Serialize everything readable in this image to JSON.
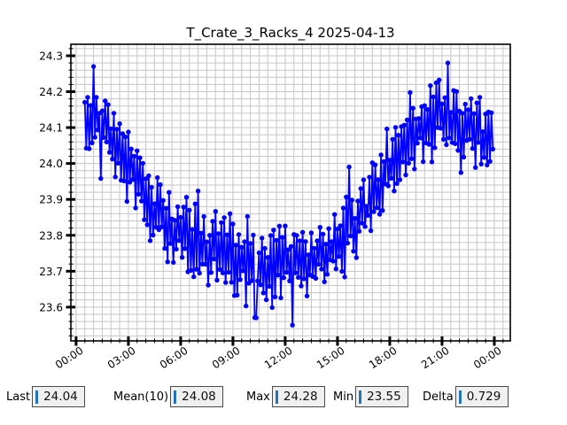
{
  "chart_data": {
    "type": "line",
    "title": "T_Crate_3_Racks_4 2025-04-13",
    "xlabel": "",
    "ylabel": "",
    "legend": null,
    "grid": true,
    "line_color": "#0000ff",
    "marker": "circle",
    "x_ticks": {
      "labels": [
        "00:00",
        "03:00",
        "06:00",
        "09:00",
        "12:00",
        "15:00",
        "18:00",
        "21:00",
        "00:00"
      ],
      "minutes": [
        0,
        180,
        360,
        540,
        720,
        900,
        1080,
        1260,
        1440
      ],
      "minor_step_minutes": 30
    },
    "y_ticks": {
      "values": [
        23.6,
        23.7,
        23.8,
        23.9,
        24.0,
        24.1,
        24.2,
        24.3
      ],
      "labels": [
        "23.6",
        "23.7",
        "23.8",
        "23.9",
        "24.0",
        "24.1",
        "24.2",
        "24.3"
      ],
      "minor_step": 0.02
    },
    "xlim_minutes": [
      -18,
      1495
    ],
    "ylim": [
      23.506,
      24.332
    ],
    "series": {
      "name": "T_Crate_3_Racks_4",
      "t_start_minutes": 30,
      "t_end_minutes": 1435,
      "t_step_minutes": 5,
      "seed": 1337,
      "trend_keypoints": [
        [
          30,
          24.12
        ],
        [
          90,
          24.12
        ],
        [
          150,
          24.03
        ],
        [
          210,
          23.95
        ],
        [
          270,
          23.87
        ],
        [
          330,
          23.82
        ],
        [
          390,
          23.79
        ],
        [
          450,
          23.76
        ],
        [
          510,
          23.74
        ],
        [
          570,
          23.72
        ],
        [
          660,
          23.72
        ],
        [
          720,
          23.72
        ],
        [
          780,
          23.71
        ],
        [
          840,
          23.74
        ],
        [
          900,
          23.78
        ],
        [
          960,
          23.83
        ],
        [
          1020,
          23.9
        ],
        [
          1080,
          23.98
        ],
        [
          1140,
          24.06
        ],
        [
          1200,
          24.1
        ],
        [
          1260,
          24.12
        ],
        [
          1320,
          24.12
        ],
        [
          1380,
          24.1
        ],
        [
          1435,
          24.06
        ]
      ],
      "noise_base": 0.02,
      "noise_rand": 0.08,
      "jitter": 0.05,
      "spike_prob": 0.07,
      "spike_add": 0.07,
      "clamp": [
        23.56,
        24.26
      ],
      "forced_points": [
        [
          60,
          24.27
        ],
        [
          620,
          23.57
        ],
        [
          745,
          23.55
        ],
        [
          1280,
          24.28
        ],
        [
          1435,
          24.04
        ]
      ]
    },
    "stats": {
      "last": 24.04,
      "mean_10": 24.08,
      "max": 24.28,
      "min": 23.55,
      "delta": 0.729
    }
  },
  "stats": [
    {
      "label": "Last",
      "value": "24.04"
    },
    {
      "label": "Mean(10)",
      "value": "24.08"
    },
    {
      "label": "Max",
      "value": "24.28"
    },
    {
      "label": "Min",
      "value": "23.55"
    },
    {
      "label": "Delta",
      "value": "0.729"
    }
  ],
  "colors": {
    "accent_blue": "#2273b8",
    "line_blue": "#0000ff",
    "grid": "#c6c6c6",
    "frame": "#000000",
    "box_bg": "#f0f0f0",
    "box_border": "#4a4a4a"
  }
}
